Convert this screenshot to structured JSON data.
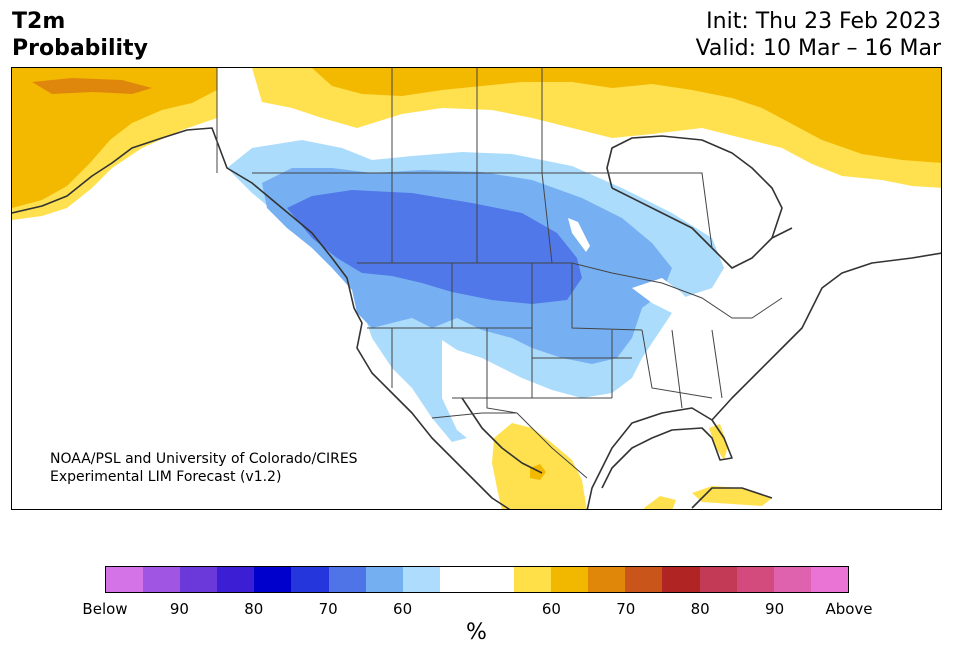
{
  "header": {
    "title_line1": "T2m",
    "title_line2": "Probability",
    "init": "Init: Thu 23 Feb 2023",
    "valid": "Valid: 10 Mar – 16 Mar"
  },
  "credit": {
    "line1": "NOAA/PSL and University of Colorado/CIRES",
    "line2": "Experimental LIM Forecast (v1.2)"
  },
  "legend": {
    "units": "%",
    "tick_labels": [
      "Below",
      "90",
      "80",
      "70",
      "60",
      "60",
      "70",
      "80",
      "90",
      "Above"
    ],
    "colors": [
      "#d472e8",
      "#a056e3",
      "#6b38d9",
      "#3c1fd5",
      "#0000cd",
      "#2536dc",
      "#4f74e8",
      "#74aff2",
      "#aedcfd",
      "#ffffff",
      "#ffffff",
      "#ffe049",
      "#f2b800",
      "#e0870a",
      "#c9551a",
      "#b02424",
      "#c23a55",
      "#d34b7d",
      "#de62ae",
      "#ea74d6"
    ]
  },
  "map": {
    "colors": {
      "light_blue": "#acdcfc",
      "mid_blue": "#77b0f2",
      "blue": "#5078e8",
      "light_yellow": "#ffe14f",
      "yellow": "#f3b900",
      "orange": "#df870c",
      "line": "#333333"
    }
  }
}
